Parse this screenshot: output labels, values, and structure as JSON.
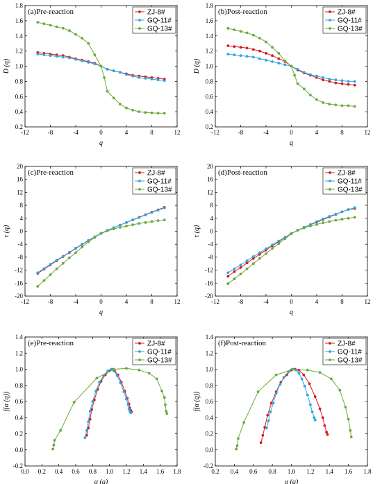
{
  "series_styles": [
    {
      "name": "ZJ-8#",
      "color": "#d7191c"
    },
    {
      "name": "GQ-11#",
      "color": "#2ca6e0"
    },
    {
      "name": "GQ-13#",
      "color": "#6aaa3a"
    }
  ],
  "chart_data": [
    {
      "id": "a",
      "type": "line",
      "title": "(a)Pre-reaction",
      "xlabel": "q",
      "ylabel": "D (q)",
      "xlim": [
        -12,
        12
      ],
      "ylim": [
        0.2,
        1.8
      ],
      "xticks": [
        -12,
        -8,
        -4,
        0,
        4,
        8,
        12
      ],
      "yticks": [
        0.2,
        0.4,
        0.6,
        0.8,
        1.0,
        1.2,
        1.4,
        1.6,
        1.8
      ],
      "legend": "top-right",
      "grid": false,
      "series": [
        {
          "name": "ZJ-8#",
          "x": [
            -10,
            -9,
            -8,
            -7,
            -6,
            -5,
            -4,
            -3,
            -2,
            -1,
            0,
            1,
            2,
            3,
            4,
            5,
            6,
            7,
            8,
            9,
            10
          ],
          "y": [
            1.18,
            1.17,
            1.16,
            1.15,
            1.14,
            1.12,
            1.1,
            1.08,
            1.06,
            1.04,
            1.0,
            0.96,
            0.94,
            0.92,
            0.9,
            0.88,
            0.87,
            0.86,
            0.85,
            0.84,
            0.83
          ]
        },
        {
          "name": "GQ-11#",
          "x": [
            -10,
            -9,
            -8,
            -7,
            -6,
            -5,
            -4,
            -3,
            -2,
            -1,
            0,
            1,
            2,
            3,
            4,
            5,
            6,
            7,
            8,
            9,
            10
          ],
          "y": [
            1.16,
            1.15,
            1.14,
            1.13,
            1.12,
            1.11,
            1.09,
            1.07,
            1.05,
            1.03,
            1.0,
            0.96,
            0.94,
            0.92,
            0.89,
            0.87,
            0.85,
            0.84,
            0.83,
            0.82,
            0.81
          ]
        },
        {
          "name": "GQ-13#",
          "x": [
            -10,
            -9,
            -8,
            -7,
            -6,
            -5,
            -4,
            -3,
            -2,
            -1,
            0,
            0.5,
            1,
            2,
            3,
            4,
            5,
            6,
            7,
            8,
            9,
            10
          ],
          "y": [
            1.58,
            1.56,
            1.54,
            1.52,
            1.5,
            1.47,
            1.42,
            1.37,
            1.3,
            1.15,
            1.0,
            0.85,
            0.67,
            0.58,
            0.5,
            0.45,
            0.42,
            0.4,
            0.39,
            0.385,
            0.38,
            0.38
          ]
        }
      ]
    },
    {
      "id": "b",
      "type": "line",
      "title": "(b)Post-reaction",
      "xlabel": "q",
      "ylabel": "D (q)",
      "xlim": [
        -12,
        12
      ],
      "ylim": [
        0.2,
        1.8
      ],
      "xticks": [
        -12,
        -8,
        -4,
        0,
        4,
        8,
        12
      ],
      "yticks": [
        0.2,
        0.4,
        0.6,
        0.8,
        1.0,
        1.2,
        1.4,
        1.6,
        1.8
      ],
      "legend": "top-right",
      "grid": false,
      "series": [
        {
          "name": "ZJ-8#",
          "x": [
            -10,
            -9,
            -8,
            -7,
            -6,
            -5,
            -4,
            -3,
            -2,
            -1,
            0,
            1,
            2,
            3,
            4,
            5,
            6,
            7,
            8,
            9,
            10
          ],
          "y": [
            1.27,
            1.26,
            1.25,
            1.24,
            1.22,
            1.2,
            1.17,
            1.14,
            1.1,
            1.06,
            1.0,
            0.95,
            0.91,
            0.88,
            0.85,
            0.82,
            0.8,
            0.78,
            0.77,
            0.76,
            0.75
          ]
        },
        {
          "name": "GQ-11#",
          "x": [
            -10,
            -9,
            -8,
            -7,
            -6,
            -5,
            -4,
            -3,
            -2,
            -1,
            0,
            1,
            2,
            3,
            4,
            5,
            6,
            7,
            8,
            9,
            10
          ],
          "y": [
            1.16,
            1.15,
            1.14,
            1.13,
            1.12,
            1.1,
            1.08,
            1.06,
            1.04,
            1.02,
            1.0,
            0.96,
            0.92,
            0.89,
            0.87,
            0.85,
            0.83,
            0.82,
            0.81,
            0.8,
            0.8
          ]
        },
        {
          "name": "GQ-13#",
          "x": [
            -10,
            -9,
            -8,
            -7,
            -6,
            -5,
            -4,
            -3,
            -2,
            -1,
            0,
            0.5,
            1,
            2,
            3,
            4,
            5,
            6,
            7,
            8,
            9,
            10
          ],
          "y": [
            1.5,
            1.48,
            1.46,
            1.44,
            1.41,
            1.37,
            1.32,
            1.25,
            1.17,
            1.07,
            1.0,
            0.88,
            0.77,
            0.7,
            0.62,
            0.56,
            0.52,
            0.5,
            0.49,
            0.48,
            0.48,
            0.47
          ]
        }
      ]
    },
    {
      "id": "c",
      "type": "line",
      "title": "(c)Pre-reaction",
      "xlabel": "q",
      "ylabel": "τ (q)",
      "xlim": [
        -12,
        12
      ],
      "ylim": [
        -20,
        20
      ],
      "xticks": [
        -12,
        -8,
        -4,
        0,
        4,
        8,
        12
      ],
      "yticks": [
        -20,
        -16,
        -12,
        -8,
        -4,
        0,
        4,
        8,
        12,
        16,
        20
      ],
      "legend": "top-right",
      "grid": false,
      "series": [
        {
          "name": "ZJ-8#",
          "x": [
            -10,
            -9,
            -8,
            -7,
            -6,
            -5,
            -4,
            -3,
            -2,
            -1,
            0,
            1,
            2,
            3,
            4,
            5,
            6,
            7,
            8,
            9,
            10
          ],
          "y": [
            -13.0,
            -11.7,
            -10.4,
            -9.1,
            -7.8,
            -6.6,
            -5.3,
            -4.1,
            -2.9,
            -1.8,
            -0.7,
            0.2,
            1.1,
            1.9,
            2.7,
            3.5,
            4.3,
            5.1,
            5.9,
            6.6,
            7.4
          ]
        },
        {
          "name": "GQ-11#",
          "x": [
            -10,
            -9,
            -8,
            -7,
            -6,
            -5,
            -4,
            -3,
            -2,
            -1,
            0,
            1,
            2,
            3,
            4,
            5,
            6,
            7,
            8,
            9,
            10
          ],
          "y": [
            -12.8,
            -11.5,
            -10.2,
            -8.9,
            -7.7,
            -6.5,
            -5.2,
            -4.0,
            -2.8,
            -1.7,
            -0.6,
            0.3,
            1.1,
            1.9,
            2.7,
            3.5,
            4.2,
            5.0,
            5.8,
            6.5,
            7.2
          ]
        },
        {
          "name": "GQ-13#",
          "x": [
            -10,
            -9,
            -8,
            -7,
            -6,
            -5,
            -4,
            -3,
            -2,
            -1,
            0,
            1,
            2,
            3,
            4,
            5,
            6,
            7,
            8,
            9,
            10
          ],
          "y": [
            -17.0,
            -15.2,
            -13.4,
            -11.6,
            -9.9,
            -8.2,
            -6.6,
            -4.9,
            -3.3,
            -1.9,
            -0.7,
            0.1,
            0.7,
            1.2,
            1.6,
            2.0,
            2.4,
            2.7,
            3.0,
            3.3,
            3.5
          ]
        }
      ]
    },
    {
      "id": "d",
      "type": "line",
      "title": "(d)Post-reaction",
      "xlabel": "q",
      "ylabel": "τ (q)",
      "xlim": [
        -12,
        12
      ],
      "ylim": [
        -20,
        20
      ],
      "xticks": [
        -12,
        -8,
        -4,
        0,
        4,
        8,
        12
      ],
      "yticks": [
        -20,
        -16,
        -12,
        -8,
        -4,
        0,
        4,
        8,
        12,
        16,
        20
      ],
      "legend": "top-right",
      "grid": false,
      "series": [
        {
          "name": "ZJ-8#",
          "x": [
            -10,
            -9,
            -8,
            -7,
            -6,
            -5,
            -4,
            -3,
            -2,
            -1,
            0,
            1,
            2,
            3,
            4,
            5,
            6,
            7,
            8,
            9,
            10
          ],
          "y": [
            -13.9,
            -12.5,
            -11.2,
            -9.8,
            -8.4,
            -7.1,
            -5.8,
            -4.5,
            -3.2,
            -1.9,
            -0.7,
            0.3,
            1.2,
            2.0,
            2.8,
            3.6,
            4.4,
            5.2,
            6.0,
            6.7,
            7.0
          ]
        },
        {
          "name": "GQ-11#",
          "x": [
            -10,
            -9,
            -8,
            -7,
            -6,
            -5,
            -4,
            -3,
            -2,
            -1,
            0,
            1,
            2,
            3,
            4,
            5,
            6,
            7,
            8,
            9,
            10
          ],
          "y": [
            -12.8,
            -11.6,
            -10.4,
            -9.1,
            -7.8,
            -6.6,
            -5.4,
            -4.2,
            -3.0,
            -1.8,
            -0.7,
            0.3,
            1.2,
            2.1,
            3.0,
            3.8,
            4.6,
            5.3,
            6.0,
            6.7,
            7.3
          ]
        },
        {
          "name": "GQ-13#",
          "x": [
            -10,
            -9,
            -8,
            -7,
            -6,
            -5,
            -4,
            -3,
            -2,
            -1,
            0,
            1,
            2,
            3,
            4,
            5,
            6,
            7,
            8,
            9,
            10
          ],
          "y": [
            -16.2,
            -14.7,
            -13.2,
            -11.6,
            -10.0,
            -8.4,
            -6.9,
            -5.3,
            -3.8,
            -2.3,
            -0.8,
            0.3,
            1.0,
            1.6,
            2.1,
            2.6,
            3.0,
            3.4,
            3.7,
            4.0,
            4.3
          ]
        }
      ]
    },
    {
      "id": "e",
      "type": "line",
      "title": "(e)Pre-reaction",
      "xlabel": "α (q)",
      "ylabel": "f(α (q))",
      "xlim": [
        0.0,
        1.8
      ],
      "ylim": [
        -0.2,
        1.4
      ],
      "xticks": [
        0.0,
        0.2,
        0.4,
        0.6,
        0.8,
        1.0,
        1.2,
        1.4,
        1.6,
        1.8
      ],
      "yticks": [
        -0.2,
        0.0,
        0.2,
        0.4,
        0.6,
        0.8,
        1.0,
        1.2,
        1.4
      ],
      "legend": "top-right",
      "grid": false,
      "series": [
        {
          "name": "ZJ-8#",
          "x": [
            0.73,
            0.75,
            0.77,
            0.79,
            0.82,
            0.86,
            0.9,
            0.95,
            1.0,
            1.03,
            1.06,
            1.1,
            1.14,
            1.18,
            1.21,
            1.23,
            1.24,
            1.25,
            1.26
          ],
          "y": [
            0.18,
            0.27,
            0.38,
            0.5,
            0.62,
            0.75,
            0.85,
            0.93,
            0.98,
            1.0,
            0.98,
            0.93,
            0.84,
            0.73,
            0.64,
            0.57,
            0.52,
            0.49,
            0.47
          ]
        },
        {
          "name": "GQ-11#",
          "x": [
            0.71,
            0.73,
            0.75,
            0.77,
            0.8,
            0.84,
            0.88,
            0.93,
            0.98,
            1.02,
            1.05,
            1.09,
            1.13,
            1.17,
            1.2,
            1.22,
            1.23,
            1.24,
            1.25
          ],
          "y": [
            0.15,
            0.24,
            0.35,
            0.48,
            0.6,
            0.73,
            0.84,
            0.92,
            0.98,
            1.0,
            0.98,
            0.92,
            0.83,
            0.72,
            0.63,
            0.56,
            0.51,
            0.48,
            0.46
          ]
        },
        {
          "name": "GQ-13#",
          "x": [
            0.33,
            0.34,
            0.35,
            0.42,
            0.58,
            0.85,
            1.05,
            1.2,
            1.35,
            1.47,
            1.56,
            1.62,
            1.65,
            1.66,
            1.67,
            1.68
          ],
          "y": [
            0.01,
            0.06,
            0.12,
            0.24,
            0.59,
            0.89,
            1.0,
            1.01,
            0.99,
            0.95,
            0.88,
            0.73,
            0.65,
            0.56,
            0.48,
            0.45
          ]
        }
      ]
    },
    {
      "id": "f",
      "type": "line",
      "title": "(f)Post-reaction",
      "xlabel": "α (q)",
      "ylabel": "f(α (q))",
      "xlim": [
        0.2,
        1.8
      ],
      "ylim": [
        -0.2,
        1.4
      ],
      "xticks": [
        0.2,
        0.4,
        0.6,
        0.8,
        1.0,
        1.2,
        1.4,
        1.6,
        1.8
      ],
      "yticks": [
        -0.2,
        0.0,
        0.2,
        0.4,
        0.6,
        0.8,
        1.0,
        1.2,
        1.4
      ],
      "legend": "top-right",
      "grid": false,
      "series": [
        {
          "name": "ZJ-8#",
          "x": [
            0.68,
            0.7,
            0.72,
            0.75,
            0.79,
            0.84,
            0.89,
            0.95,
            1.0,
            1.04,
            1.08,
            1.13,
            1.19,
            1.25,
            1.3,
            1.33,
            1.35,
            1.37,
            1.38
          ],
          "y": [
            0.09,
            0.18,
            0.28,
            0.43,
            0.58,
            0.72,
            0.84,
            0.93,
            0.99,
            1.0,
            0.99,
            0.93,
            0.82,
            0.66,
            0.51,
            0.4,
            0.3,
            0.22,
            0.19
          ]
        },
        {
          "name": "GQ-11#",
          "x": [
            0.74,
            0.76,
            0.78,
            0.81,
            0.84,
            0.88,
            0.92,
            0.97,
            1.01,
            1.05,
            1.08,
            1.11,
            1.14,
            1.17,
            1.2,
            1.22,
            1.24,
            1.25
          ],
          "y": [
            0.27,
            0.36,
            0.47,
            0.58,
            0.7,
            0.81,
            0.9,
            0.97,
            1.0,
            0.99,
            0.95,
            0.88,
            0.79,
            0.68,
            0.56,
            0.47,
            0.4,
            0.37
          ]
        },
        {
          "name": "GQ-13#",
          "x": [
            0.42,
            0.43,
            0.44,
            0.5,
            0.65,
            0.84,
            1.02,
            1.17,
            1.3,
            1.42,
            1.51,
            1.57,
            1.6,
            1.62,
            1.63
          ],
          "y": [
            0.01,
            0.05,
            0.14,
            0.34,
            0.72,
            0.93,
            1.0,
            0.99,
            0.96,
            0.88,
            0.74,
            0.53,
            0.38,
            0.24,
            0.16
          ]
        }
      ]
    }
  ]
}
